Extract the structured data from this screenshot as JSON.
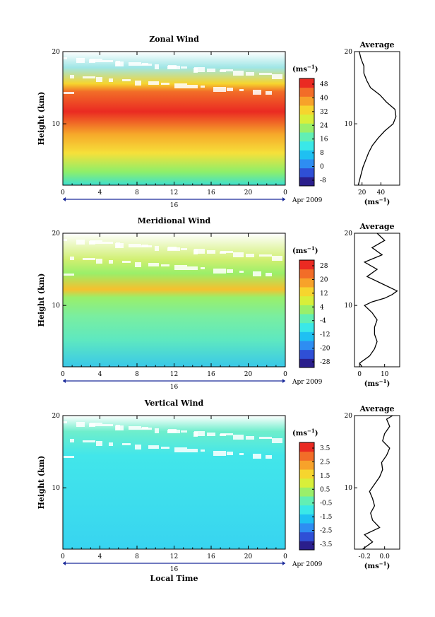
{
  "colorscale": [
    "#2a1e8c",
    "#2f4fd6",
    "#2e8df2",
    "#1fc0f2",
    "#3ae8e8",
    "#62efb4",
    "#9aef6a",
    "#d8ef3a",
    "#f6d52e",
    "#f7a22a",
    "#f26d28",
    "#ea2a22"
  ],
  "chart_data": [
    {
      "type": "heatmap",
      "title": "Zonal Wind",
      "ylabel": "Height (km)",
      "xlabel": "",
      "date_label": "Apr 2009",
      "day_label": "16",
      "x_ticks": [
        "0",
        "4",
        "8",
        "12",
        "16",
        "20",
        "0"
      ],
      "y_ticks": [
        "10",
        "20"
      ],
      "xlim": [
        0,
        24
      ],
      "ylim": [
        1.5,
        20
      ],
      "colorbar_unit": "(ms",
      "colorbar_unit_sup": "−1",
      "colorbar_labels": [
        "48",
        "40",
        "32",
        "24",
        "16",
        "8",
        "0",
        "-8"
      ],
      "profile": {
        "title": "Average",
        "x_ticks": [
          "20",
          "40"
        ],
        "xlim": [
          12,
          60
        ],
        "unit": "(ms",
        "unit_sup": "−1",
        "heights": [
          1.5,
          3,
          4,
          5,
          6,
          7,
          8,
          9,
          10,
          11,
          12,
          13,
          14,
          15,
          16,
          17,
          18,
          19,
          20
        ],
        "values": [
          16,
          19,
          21,
          24,
          27,
          31,
          37,
          44,
          53,
          56,
          55,
          46,
          39,
          29,
          25,
          22,
          22,
          19,
          17
        ]
      }
    },
    {
      "type": "heatmap",
      "title": "Meridional Wind",
      "ylabel": "Height (km)",
      "xlabel": "",
      "date_label": "Apr 2009",
      "day_label": "16",
      "x_ticks": [
        "0",
        "4",
        "8",
        "12",
        "16",
        "20",
        "0"
      ],
      "y_ticks": [
        "10",
        "20"
      ],
      "xlim": [
        0,
        24
      ],
      "ylim": [
        1.5,
        20
      ],
      "colorbar_unit": "(ms",
      "colorbar_unit_sup": "−1",
      "colorbar_labels": [
        "28",
        "20",
        "12",
        "4",
        "-4",
        "-12",
        "-20",
        "-28"
      ],
      "profile": {
        "title": "Average",
        "x_ticks": [
          "0",
          "10"
        ],
        "xlim": [
          -2,
          16
        ],
        "unit": "(ms",
        "unit_sup": "−1",
        "heights": [
          1.5,
          2,
          3,
          4,
          5,
          6,
          7,
          8,
          9,
          10,
          10.5,
          11,
          11.5,
          12,
          13,
          14,
          15,
          16,
          17,
          18,
          19,
          20
        ],
        "values": [
          1,
          0,
          4,
          6,
          7,
          6,
          6,
          7,
          5,
          2,
          5,
          10,
          13,
          15,
          9,
          3,
          7,
          2,
          9,
          5,
          10,
          7
        ]
      }
    },
    {
      "type": "heatmap",
      "title": "Vertical Wind",
      "ylabel": "Height (km)",
      "xlabel": "Local Time",
      "date_label": "Apr 2009",
      "day_label": "16",
      "x_ticks": [
        "0",
        "4",
        "8",
        "12",
        "16",
        "20",
        "0"
      ],
      "y_ticks": [
        "10",
        "20"
      ],
      "xlim": [
        0,
        24
      ],
      "ylim": [
        1.5,
        20
      ],
      "colorbar_unit": "(ms",
      "colorbar_unit_sup": "−1",
      "colorbar_labels": [
        "3.5",
        "2.5",
        "1.5",
        "0.5",
        "-0.5",
        "-1.5",
        "-2.5",
        "-3.5"
      ],
      "profile": {
        "title": "Average",
        "x_ticks": [
          "-0.2",
          "0.0"
        ],
        "xlim": [
          -0.3,
          0.15
        ],
        "unit": "(ms",
        "unit_sup": "−1",
        "heights": [
          1.5,
          2.5,
          3.5,
          4.5,
          5.5,
          6.5,
          7.5,
          8.5,
          9.5,
          10.5,
          11.5,
          12.5,
          13.5,
          14.5,
          15.5,
          16.5,
          17.5,
          18.5,
          19.5,
          20
        ],
        "values": [
          -0.22,
          -0.12,
          -0.2,
          -0.05,
          -0.12,
          -0.14,
          -0.1,
          -0.12,
          -0.15,
          -0.1,
          -0.05,
          -0.02,
          -0.03,
          0.02,
          0.05,
          -0.02,
          0.0,
          0.05,
          0.02,
          0.08
        ]
      }
    }
  ]
}
